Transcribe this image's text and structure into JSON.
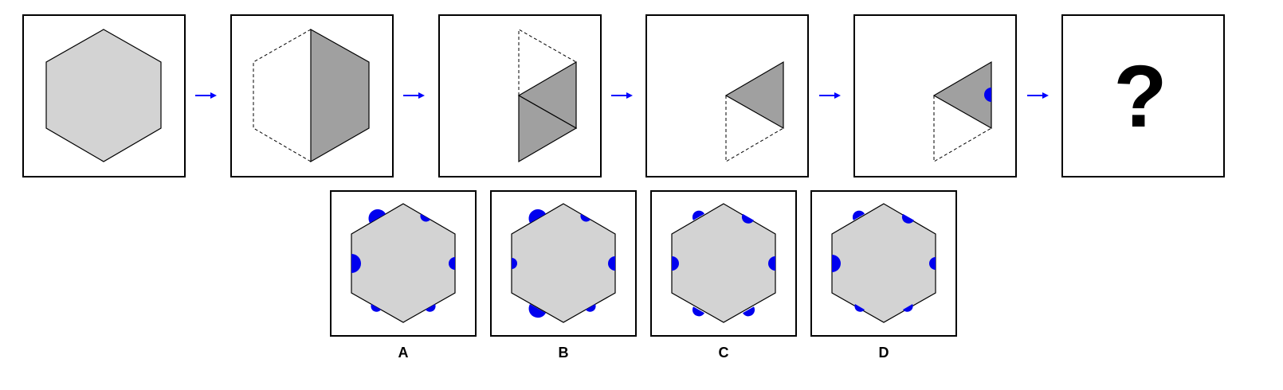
{
  "colors": {
    "hexagon_fill": "#d3d3d3",
    "folded_fill": "#a0a0a0",
    "outline": "#000000",
    "arrow": "#0000ff",
    "hole": "#0000ee",
    "background": "#ffffff"
  },
  "sequence": {
    "steps": [
      {
        "description_icon": "full-hexagon"
      },
      {
        "description_icon": "hexagon-folded-in-half"
      },
      {
        "description_icon": "hexagon-folded-into-thirds"
      },
      {
        "description_icon": "single-triangle"
      },
      {
        "description_icon": "triangle-with-punched-hole"
      }
    ],
    "question_mark": "?"
  },
  "options": [
    {
      "label": "A"
    },
    {
      "label": "B"
    },
    {
      "label": "C"
    },
    {
      "label": "D"
    }
  ]
}
